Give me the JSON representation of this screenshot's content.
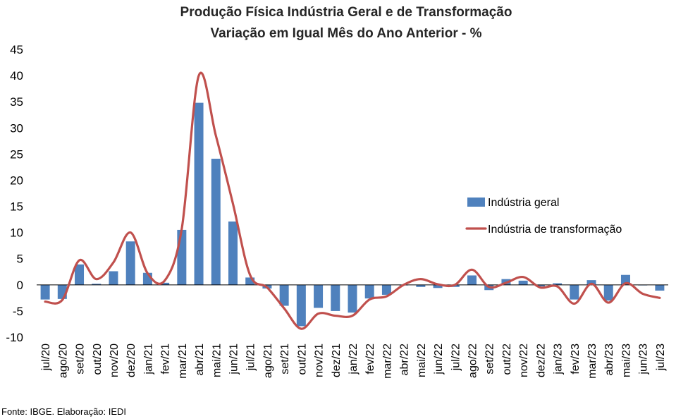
{
  "chart_data": {
    "type": "bar+line",
    "title": "Produção Física Indústria Geral e de Transformação",
    "subtitle": "Variação em Igual Mês do Ano Anterior - %",
    "ylim": [
      -10,
      45
    ],
    "yticks": [
      -10,
      -5,
      0,
      5,
      10,
      15,
      20,
      25,
      30,
      35,
      40,
      45
    ],
    "categories": [
      "jul/20",
      "ago/20",
      "set/20",
      "out/20",
      "nov/20",
      "dez/20",
      "jan/21",
      "fev/21",
      "mar/21",
      "abr/21",
      "mai/21",
      "jun/21",
      "jul/21",
      "ago/21",
      "set/21",
      "out/21",
      "nov/21",
      "dez/21",
      "jan/22",
      "fev/22",
      "mar/22",
      "abr/22",
      "mai/22",
      "jun/22",
      "jul/22",
      "ago/22",
      "set/22",
      "out/22",
      "nov/22",
      "dez/22",
      "jan/23",
      "fev/23",
      "mar/23",
      "abr/23",
      "mai/23",
      "jun/23",
      "jul/23"
    ],
    "series": [
      {
        "name": "Indústria geral",
        "kind": "bar",
        "color": "#4F81BD",
        "values": [
          -2.8,
          -2.7,
          3.9,
          0.2,
          2.6,
          8.3,
          2.3,
          0.4,
          10.5,
          34.8,
          24.1,
          12.1,
          1.4,
          -0.7,
          -4.0,
          -7.9,
          -4.4,
          -5.0,
          -5.3,
          -2.6,
          -1.9,
          -0.1,
          -0.4,
          -0.6,
          -0.4,
          1.8,
          -1.0,
          1.1,
          0.8,
          -0.3,
          0.3,
          -2.8,
          0.9,
          -3.0,
          1.9,
          0.0,
          -1.1
        ]
      },
      {
        "name": "Indústria de transformação",
        "kind": "line",
        "color": "#C0504D",
        "values": [
          -3.2,
          -2.9,
          4.7,
          1.1,
          4.3,
          10.0,
          2.2,
          0.8,
          10.7,
          40.0,
          28.5,
          15.5,
          1.9,
          -0.5,
          -4.5,
          -8.4,
          -5.5,
          -5.9,
          -5.9,
          -2.8,
          -2.2,
          0.0,
          1.1,
          0.1,
          0.0,
          2.9,
          -0.4,
          0.4,
          1.5,
          -0.5,
          -0.3,
          -3.6,
          0.2,
          -3.4,
          0.3,
          -1.7,
          -2.5
        ]
      }
    ],
    "legend_position": "right",
    "grid": false
  },
  "source": "Fonte: IBGE. Elaboração: IEDI"
}
